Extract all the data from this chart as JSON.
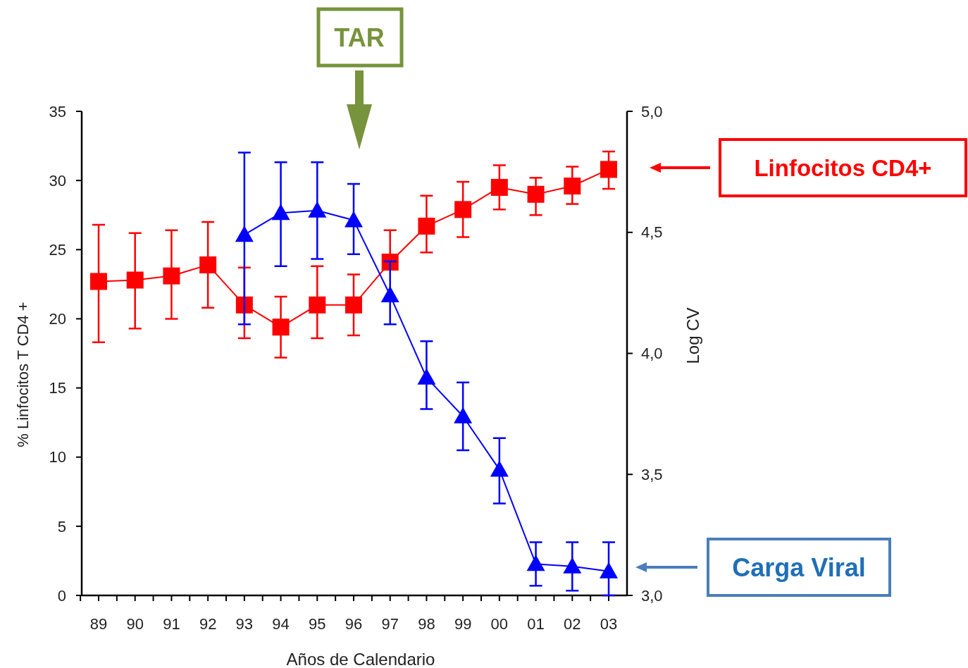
{
  "chart_data": {
    "type": "line",
    "xlabel": "Años de Calendario",
    "ylabel": "% Linfocitos T CD4 +",
    "y2label": "Log CV",
    "categories": [
      "89",
      "90",
      "91",
      "92",
      "93",
      "94",
      "95",
      "96",
      "97",
      "98",
      "99",
      "00",
      "01",
      "02",
      "03"
    ],
    "series": [
      {
        "name": "Linfocitos CD4+",
        "color": "#ff0000",
        "marker": "square",
        "values": [
          22.7,
          22.8,
          23.1,
          23.9,
          21.0,
          19.4,
          21.0,
          21.0,
          24.1,
          26.7,
          27.9,
          29.5,
          29.0,
          29.6,
          30.8
        ],
        "errors": [
          [
            18.3,
            26.8
          ],
          [
            19.3,
            26.2
          ],
          [
            20.0,
            26.4
          ],
          [
            20.8,
            27.0
          ],
          [
            18.6,
            23.7
          ],
          [
            17.2,
            21.6
          ],
          [
            18.6,
            23.8
          ],
          [
            18.8,
            23.2
          ],
          [
            24.1,
            26.4
          ],
          [
            24.8,
            28.9
          ],
          [
            25.9,
            29.9
          ],
          [
            27.9,
            31.1
          ],
          [
            27.5,
            30.2
          ],
          [
            28.3,
            31.0
          ],
          [
            29.4,
            32.1
          ]
        ]
      },
      {
        "name": "Carga Viral",
        "color": "#0000ff",
        "marker": "triangle",
        "axis": "y2",
        "values": [
          null,
          null,
          null,
          null,
          4.49,
          4.58,
          4.59,
          4.55,
          4.24,
          3.9,
          3.74,
          3.52,
          3.13,
          3.12,
          3.1
        ],
        "errors": [
          null,
          null,
          null,
          null,
          [
            4.12,
            4.83
          ],
          [
            4.36,
            4.79
          ],
          [
            4.39,
            4.79
          ],
          [
            4.41,
            4.7
          ],
          [
            4.12,
            4.38
          ],
          [
            3.77,
            4.05
          ],
          [
            3.6,
            3.88
          ],
          [
            3.38,
            3.65
          ],
          [
            3.04,
            3.22
          ],
          [
            3.02,
            3.22
          ],
          [
            3.0,
            3.22
          ]
        ]
      }
    ],
    "ylim": [
      0,
      35
    ],
    "yticks": [
      0,
      5,
      10,
      15,
      20,
      25,
      30,
      35
    ],
    "y2lim": [
      3,
      5
    ],
    "y2ticks": [
      {
        "value": 3,
        "label": "3,0"
      },
      {
        "value": 3.5,
        "label": "3,5"
      },
      {
        "value": 4,
        "label": "4,0"
      },
      {
        "value": 4.5,
        "label": "4,5"
      },
      {
        "value": 5,
        "label": "5,0"
      }
    ],
    "grid": false,
    "legend": "right",
    "line_style": "solid",
    "annotations": [
      "TAR"
    ]
  }
}
